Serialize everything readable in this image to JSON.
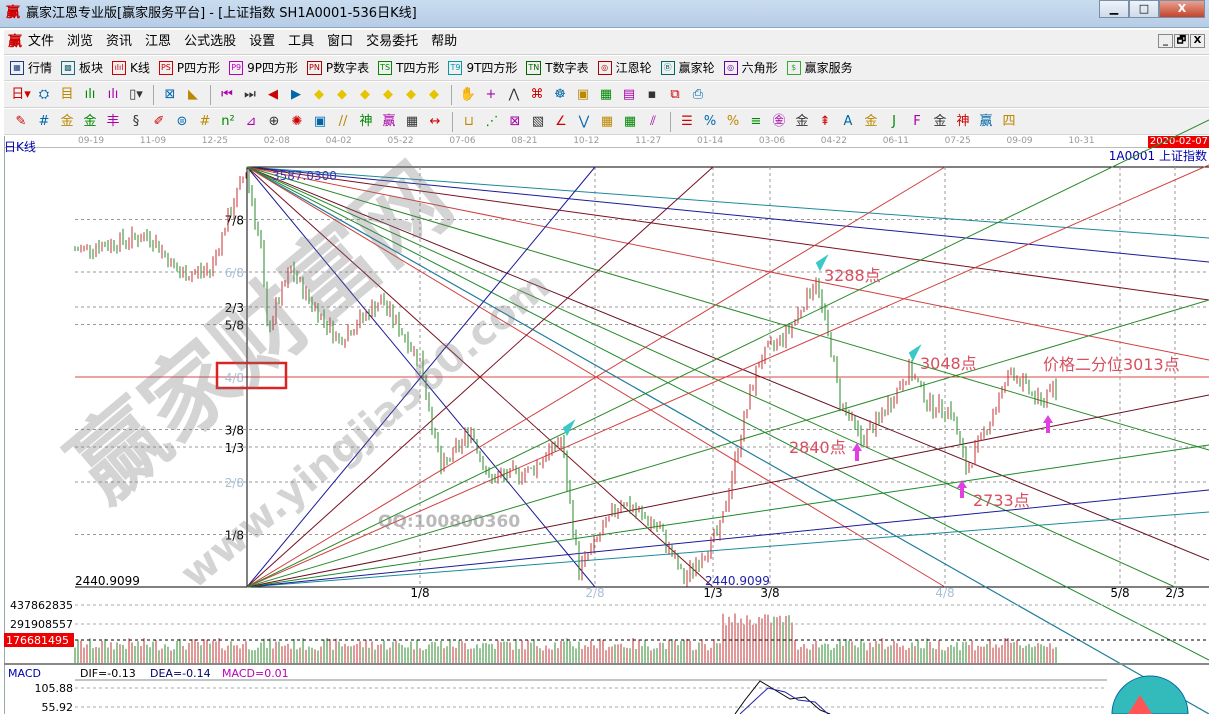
{
  "window": {
    "title": "赢家江恩专业版[赢家服务平台] - [上证指数  SH1A0001-536日K线]",
    "logo": "赢",
    "min": "▁",
    "max": "□",
    "close": "X"
  },
  "menu": {
    "logo": "赢",
    "items": [
      "文件",
      "浏览",
      "资讯",
      "江恩",
      "公式选股",
      "设置",
      "工具",
      "窗口",
      "交易委托",
      "帮助"
    ],
    "mdi": [
      "_",
      "🗗",
      "X"
    ]
  },
  "toolbar1": [
    {
      "icon": "grid-table",
      "glyph": "▦",
      "label": "行情",
      "color": "#1a3d8a"
    },
    {
      "icon": "blocks",
      "glyph": "▩",
      "label": "板块",
      "color": "#1a6a7a"
    },
    {
      "icon": "candles",
      "glyph": "ılıl",
      "label": "K线",
      "color": "#c00"
    },
    {
      "icon": "ps",
      "glyph": "PS",
      "label": "P四方形",
      "color": "#c00"
    },
    {
      "icon": "p9",
      "glyph": "P9",
      "label": "9P四方形",
      "color": "#b0b"
    },
    {
      "icon": "pn",
      "glyph": "PN",
      "label": "P数字表",
      "color": "#a00"
    },
    {
      "icon": "ts",
      "glyph": "TS",
      "label": "T四方形",
      "color": "#080"
    },
    {
      "icon": "t9",
      "glyph": "T9",
      "label": "9T四方形",
      "color": "#09a"
    },
    {
      "icon": "tn",
      "glyph": "TN",
      "label": "T数字表",
      "color": "#060"
    },
    {
      "icon": "gann-wheel",
      "glyph": "◎",
      "label": "江恩轮",
      "color": "#a00"
    },
    {
      "icon": "big-wheel",
      "glyph": "Ⓑ",
      "label": "赢家轮",
      "color": "#066"
    },
    {
      "icon": "hexagon",
      "glyph": "◎",
      "label": "六角形",
      "color": "#60a"
    },
    {
      "icon": "dollar",
      "glyph": "$",
      "label": "赢家服务",
      "color": "#3a3"
    }
  ],
  "toolbar2": [
    {
      "n": "period-select",
      "g": "日▾"
    },
    {
      "n": "chart-type",
      "g": "⛭"
    },
    {
      "n": "indicator",
      "g": "目"
    },
    {
      "n": "bars-3",
      "g": "ılı"
    },
    {
      "n": "bars-9",
      "g": "ılı"
    },
    {
      "n": "candle-select",
      "g": "▯▾"
    },
    {
      "sep": true
    },
    {
      "n": "gann-calc",
      "g": "⊠"
    },
    {
      "n": "flag",
      "g": "◣"
    },
    {
      "sep": true
    },
    {
      "n": "first",
      "g": "⏮"
    },
    {
      "n": "last",
      "g": "⏭"
    },
    {
      "n": "prev",
      "g": "◀"
    },
    {
      "n": "next",
      "g": "▶"
    },
    {
      "n": "diamond-left",
      "g": "◆"
    },
    {
      "n": "diamond-right",
      "g": "◆"
    },
    {
      "n": "diamond-expand",
      "g": "◆"
    },
    {
      "n": "diamond-shrink",
      "g": "◆"
    },
    {
      "n": "diamond-up",
      "g": "◆"
    },
    {
      "n": "diamond-down",
      "g": "◆"
    },
    {
      "sep": true
    },
    {
      "n": "hand",
      "g": "✋"
    },
    {
      "n": "crosshair",
      "g": "+"
    },
    {
      "n": "line-draw",
      "g": "⋀"
    },
    {
      "n": "stamp",
      "g": "⌘"
    },
    {
      "n": "brain",
      "g": "☸"
    },
    {
      "n": "calendar",
      "g": "▣"
    },
    {
      "n": "calculator",
      "g": "▦"
    },
    {
      "n": "notes",
      "g": "▤"
    },
    {
      "n": "save",
      "g": "▪"
    },
    {
      "n": "connect",
      "g": "⧉"
    },
    {
      "n": "print",
      "g": "⎙"
    }
  ],
  "toolbar3": [
    {
      "n": "pen",
      "g": "✎"
    },
    {
      "n": "hash",
      "g": "#"
    },
    {
      "n": "gold1",
      "g": "金"
    },
    {
      "n": "gold2",
      "g": "金"
    },
    {
      "n": "t-grid",
      "g": "丰"
    },
    {
      "n": "spiral",
      "g": "§"
    },
    {
      "n": "brush",
      "g": "✐"
    },
    {
      "n": "circle-grid",
      "g": "⊜"
    },
    {
      "n": "hash2",
      "g": "#"
    },
    {
      "n": "n2",
      "g": "n²"
    },
    {
      "n": "triangle",
      "g": "⊿"
    },
    {
      "n": "target",
      "g": "⊕"
    },
    {
      "n": "sun",
      "g": "✺"
    },
    {
      "n": "box",
      "g": "▣"
    },
    {
      "n": "lines",
      "g": "//"
    },
    {
      "n": "shen",
      "g": "神"
    },
    {
      "n": "ying",
      "g": "赢"
    },
    {
      "n": "grid-cal",
      "g": "▦"
    },
    {
      "n": "width",
      "g": "↔"
    },
    {
      "sep": true
    },
    {
      "n": "bar-box",
      "g": "⊔"
    },
    {
      "n": "fan",
      "g": "⋰"
    },
    {
      "n": "square-x",
      "g": "⊠"
    },
    {
      "n": "square-lines",
      "g": "▧"
    },
    {
      "n": "angle",
      "g": "∠"
    },
    {
      "n": "wave",
      "g": "⋁"
    },
    {
      "n": "grid1",
      "g": "▦"
    },
    {
      "n": "grid2",
      "g": "▦"
    },
    {
      "n": "parallel",
      "g": "⫽"
    },
    {
      "sep": true
    },
    {
      "n": "steps",
      "g": "☰"
    },
    {
      "n": "pct-line",
      "g": "%"
    },
    {
      "n": "percent",
      "g": "%"
    },
    {
      "n": "pct-lines",
      "g": "≡"
    },
    {
      "n": "gold-circle",
      "g": "㊎"
    },
    {
      "n": "gold-lines",
      "g": "金"
    },
    {
      "n": "arrow-pen",
      "g": "⇞"
    },
    {
      "n": "av",
      "g": "A"
    },
    {
      "n": "gold-bar",
      "g": "金"
    },
    {
      "n": "j-angle",
      "g": "J"
    },
    {
      "n": "f-angle",
      "g": "F"
    },
    {
      "n": "gold-angle",
      "g": "金"
    },
    {
      "n": "shen-angle",
      "g": "神"
    },
    {
      "n": "ying-angle",
      "g": "赢"
    },
    {
      "n": "si-angle",
      "g": "四"
    }
  ],
  "date_axis": {
    "labels": [
      "09-19",
      "11-09",
      "12-25",
      "02-08",
      "04-02",
      "05-22",
      "07-06",
      "08-21",
      "10-12",
      "11-27",
      "01-14",
      "03-06",
      "04-22",
      "06-11",
      "07-25",
      "09-09",
      "10-31"
    ],
    "current_date": "2020-02-07"
  },
  "chart": {
    "period_label": "日K线",
    "symbol_label": "1A0001 上证指数",
    "high_label": "3587.0300",
    "low_label": "2440.9099",
    "low_label2": "2440.9099",
    "price_fractions": [
      {
        "label": "7/8",
        "f": 0.875,
        "muted": false
      },
      {
        "label": "6/8",
        "f": 0.75,
        "muted": true
      },
      {
        "label": "2/3",
        "f": 0.6667,
        "muted": false
      },
      {
        "label": "5/8",
        "f": 0.625,
        "muted": false
      },
      {
        "label": "4/8",
        "f": 0.5,
        "muted": true
      },
      {
        "label": "3/8",
        "f": 0.375,
        "muted": false
      },
      {
        "label": "1/3",
        "f": 0.3333,
        "muted": false
      },
      {
        "label": "2/8",
        "f": 0.25,
        "muted": true
      },
      {
        "label": "1/8",
        "f": 0.125,
        "muted": false
      }
    ],
    "time_fractions": [
      {
        "label": "1/8",
        "muted": false
      },
      {
        "label": "2/8",
        "muted": true
      },
      {
        "label": "1/3",
        "muted": false
      },
      {
        "label": "3/8",
        "muted": false
      },
      {
        "label": "4/8",
        "muted": true
      },
      {
        "label": "5/8",
        "muted": false
      },
      {
        "label": "2/3",
        "muted": false
      }
    ],
    "annotations": [
      "3288点",
      "3048点",
      "2840点",
      "2733点",
      "价格二分位3013点"
    ],
    "watermark": {
      "logo_text": "赢家财富网",
      "url": "www.yingjia360.com",
      "qq": "QQ:100800360"
    }
  },
  "chart_data": {
    "type": "candlestick",
    "ylim": [
      2440.9099,
      3587.03
    ],
    "key_closes": [
      [
        0,
        3360
      ],
      [
        25,
        3400
      ],
      [
        35,
        3292
      ],
      [
        45,
        3306
      ],
      [
        52,
        3470
      ],
      [
        57,
        3579
      ],
      [
        62,
        3360
      ],
      [
        64,
        3142
      ],
      [
        72,
        3306
      ],
      [
        78,
        3224
      ],
      [
        88,
        3115
      ],
      [
        102,
        3224
      ],
      [
        115,
        3060
      ],
      [
        122,
        2760
      ],
      [
        132,
        2870
      ],
      [
        138,
        2733
      ],
      [
        152,
        2760
      ],
      [
        162,
        2842
      ],
      [
        168,
        2487
      ],
      [
        182,
        2678
      ],
      [
        195,
        2596
      ],
      [
        203,
        2460
      ],
      [
        215,
        2596
      ],
      [
        223,
        2897
      ],
      [
        228,
        3060
      ],
      [
        238,
        3142
      ],
      [
        247,
        3279
      ],
      [
        252,
        3088
      ],
      [
        255,
        2951
      ],
      [
        262,
        2842
      ],
      [
        268,
        2897
      ],
      [
        278,
        3033
      ],
      [
        285,
        2937
      ],
      [
        292,
        2924
      ],
      [
        297,
        2760
      ],
      [
        305,
        2897
      ],
      [
        312,
        3033
      ],
      [
        322,
        2937
      ],
      [
        325,
        2992
      ],
      [
        327,
        2960
      ]
    ]
  },
  "volume": {
    "levels": [
      "437862835",
      "291908557"
    ],
    "current": "176681495"
  },
  "macd": {
    "title": "MACD",
    "dif": "DIF=-0.13",
    "dea": "DEA=-0.14",
    "macd": "MACD=0.01",
    "levels": [
      "105.88",
      "55.92"
    ]
  }
}
